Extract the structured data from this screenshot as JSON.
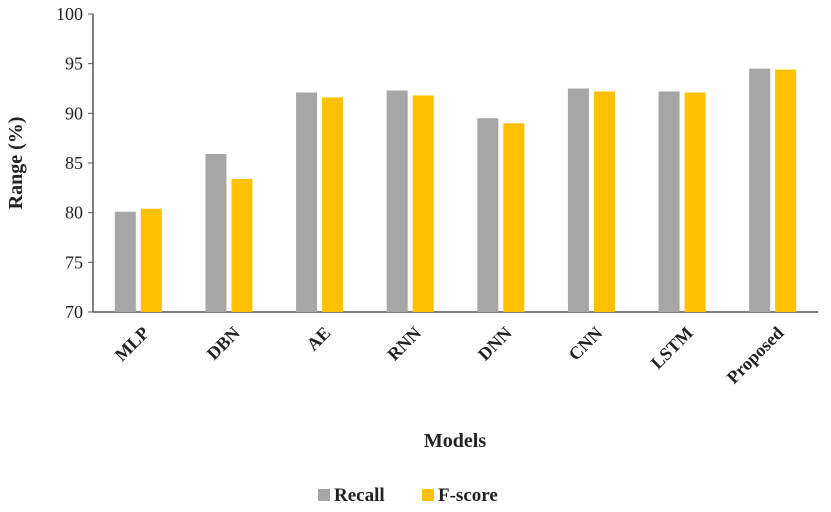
{
  "chart_data": {
    "type": "bar",
    "title": "",
    "xlabel": "Models",
    "ylabel": "Range (%)",
    "ylim": [
      70,
      100
    ],
    "yticks": [
      70,
      75,
      80,
      85,
      90,
      95,
      100
    ],
    "grid": false,
    "legend_position": "bottom",
    "categories": [
      "MLP",
      "DBN",
      "AE",
      "RNN",
      "DNN",
      "CNN",
      "LSTM",
      "Proposed"
    ],
    "series": [
      {
        "name": "Recall",
        "color": "#a6a6a6",
        "values": [
          80.1,
          85.9,
          92.1,
          92.3,
          89.5,
          92.5,
          92.2,
          94.5
        ]
      },
      {
        "name": "F-score",
        "color": "#ffc000",
        "values": [
          80.4,
          83.4,
          91.6,
          91.8,
          89.0,
          92.2,
          92.1,
          94.4
        ]
      }
    ]
  }
}
